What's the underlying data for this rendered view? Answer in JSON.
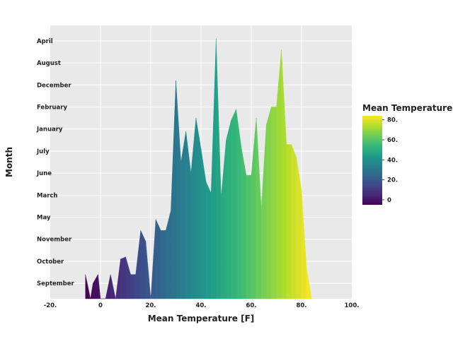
{
  "chart_data": {
    "type": "area",
    "title": "",
    "xlabel": "Mean Temperature [F]",
    "ylabel": "Month",
    "xlim": [
      -20,
      100
    ],
    "x_ticks": [
      -20,
      0,
      20,
      40,
      60,
      80,
      100
    ],
    "x_tick_labels": [
      "-20.",
      "0",
      "20.",
      "40.",
      "60.",
      "80.",
      "100."
    ],
    "y_categories": [
      "September",
      "October",
      "November",
      "May",
      "March",
      "June",
      "July",
      "January",
      "February",
      "December",
      "August",
      "April"
    ],
    "grid": true,
    "legend": {
      "title": "Mean Temperature [F]",
      "placement": "right",
      "range": [
        -5,
        84
      ],
      "ticks": [
        0,
        20,
        40,
        60,
        80
      ],
      "tick_labels": [
        "0",
        "20.",
        "40.",
        "60.",
        "80."
      ]
    },
    "colorscale": [
      "#440154",
      "#482878",
      "#3e4989",
      "#31688e",
      "#26828e",
      "#1f9e89",
      "#35b779",
      "#6ece58",
      "#b5de2b",
      "#fde725"
    ],
    "series": [
      {
        "x": [
          -6,
          -4,
          -3,
          -1,
          0,
          2,
          4,
          6,
          8,
          10,
          12,
          14,
          16,
          18,
          20,
          22,
          24,
          26,
          28,
          30,
          32,
          34,
          36,
          38,
          40,
          42,
          44,
          46,
          48,
          50,
          52,
          54,
          56,
          58,
          60,
          62,
          64,
          66,
          68,
          70,
          72,
          74,
          76,
          78,
          80,
          82,
          84
        ],
        "y": [
          0.4,
          -0.7,
          0.0,
          0.4,
          -0.7,
          -0.7,
          0.4,
          -0.7,
          1.1,
          1.2,
          0.4,
          0.4,
          2.4,
          1.9,
          -0.7,
          2.9,
          2.4,
          2.4,
          3.3,
          9.2,
          5.5,
          6.9,
          5.0,
          7.5,
          6.1,
          4.6,
          4.1,
          11.1,
          3.9,
          6.5,
          7.4,
          7.9,
          6.2,
          4.9,
          4.9,
          7.5,
          3.4,
          7.2,
          8.0,
          8.0,
          10.6,
          6.3,
          6.3,
          5.7,
          4.2,
          0.7,
          -0.7
        ]
      }
    ]
  }
}
